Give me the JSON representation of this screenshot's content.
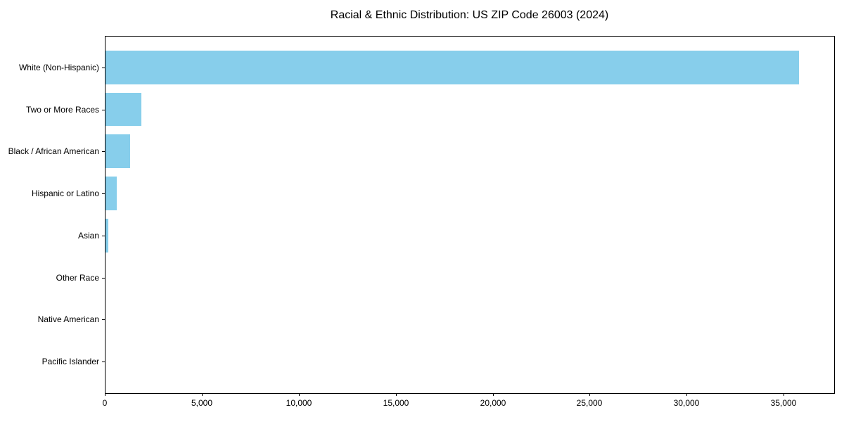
{
  "chart_data": {
    "type": "bar",
    "orientation": "horizontal",
    "title": "Racial & Ethnic Distribution: US ZIP Code 26003 (2024)",
    "xlabel": "",
    "ylabel": "",
    "categories": [
      "White (Non-Hispanic)",
      "Two or More Races",
      "Black / African American",
      "Hispanic or Latino",
      "Asian",
      "Other Race",
      "Native American",
      "Pacific Islander"
    ],
    "values": [
      35800,
      1900,
      1300,
      600,
      180,
      40,
      15,
      5
    ],
    "xlim": [
      0,
      37600
    ],
    "x_ticks": [
      0,
      5000,
      10000,
      15000,
      20000,
      25000,
      30000,
      35000
    ],
    "x_tick_labels": [
      "0",
      "5,000",
      "10,000",
      "15,000",
      "20,000",
      "25,000",
      "30,000",
      "35,000"
    ],
    "grid": false,
    "legend": "none",
    "bar_color": "#87CEEB",
    "axis_color": "#000000",
    "text_color": "#000000",
    "background_color": "#ffffff",
    "bar_height_fraction": 0.8
  }
}
